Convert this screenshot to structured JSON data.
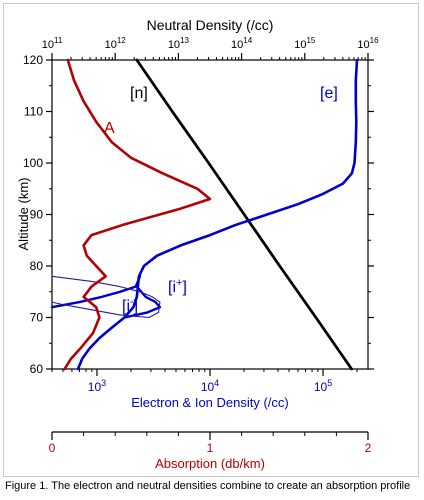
{
  "chart_data": {
    "type": "line",
    "title": "",
    "top_axis": {
      "label": "Neutral Density (/cc)",
      "scale": "log",
      "range": [
        100000000000.0,
        1e+16
      ],
      "ticks": [
        {
          "value": 100000000000.0,
          "label": "10",
          "exp": "11"
        },
        {
          "value": 1000000000000.0,
          "label": "10",
          "exp": "12"
        },
        {
          "value": 10000000000000.0,
          "label": "10",
          "exp": "13"
        },
        {
          "value": 100000000000000.0,
          "label": "10",
          "exp": "14"
        },
        {
          "value": 1000000000000000.0,
          "label": "10",
          "exp": "15"
        },
        {
          "value": 1e+16,
          "label": "10",
          "exp": "16"
        }
      ]
    },
    "bottom_axis": {
      "label": "Electron & Ion Density (/cc)",
      "scale": "log",
      "range": [
        400,
        250000
      ],
      "ticks": [
        {
          "value": 1000,
          "label": "10",
          "exp": "3"
        },
        {
          "value": 10000,
          "label": "10",
          "exp": "4"
        },
        {
          "value": 100000,
          "label": "10",
          "exp": "5"
        }
      ]
    },
    "y_axis": {
      "label": "Altitude (km)",
      "range": [
        60,
        120
      ],
      "ticks": [
        60,
        70,
        80,
        90,
        100,
        110,
        120
      ]
    },
    "absorption_axis": {
      "label": "Absorption (db/km)",
      "range": [
        0,
        2
      ],
      "ticks": [
        0,
        1,
        2
      ]
    },
    "series": [
      {
        "name": "[n]",
        "axis": "top",
        "color": "#000000",
        "points": [
          [
            2200000000000.0,
            120
          ],
          [
            8000000000000.0,
            110
          ],
          [
            30000000000000.0,
            100
          ],
          [
            110000000000000.0,
            90
          ],
          [
            400000000000000.0,
            80
          ],
          [
            1500000000000000.0,
            70
          ],
          [
            5500000000000000.0,
            60
          ]
        ]
      },
      {
        "name": "[e]",
        "axis": "bottom",
        "color": "#0000cc",
        "points": [
          [
            680,
            60
          ],
          [
            740,
            62
          ],
          [
            860,
            64
          ],
          [
            1050,
            66
          ],
          [
            1350,
            68
          ],
          [
            1750,
            70
          ],
          [
            2100,
            72
          ],
          [
            2250,
            74
          ],
          [
            2300,
            76
          ],
          [
            2350,
            78
          ],
          [
            2600,
            80
          ],
          [
            3400,
            82
          ],
          [
            5500,
            84
          ],
          [
            10000,
            86
          ],
          [
            17000,
            88
          ],
          [
            32000,
            90
          ],
          [
            60000,
            92
          ],
          [
            100000,
            94
          ],
          [
            150000,
            96
          ],
          [
            180000,
            98
          ],
          [
            190000,
            100
          ],
          [
            195000,
            104
          ],
          [
            197000,
            108
          ],
          [
            195000,
            112
          ],
          [
            195000,
            116
          ],
          [
            200000,
            120
          ]
        ]
      },
      {
        "name": "[i+]",
        "axis": "bottom",
        "color": "#0000cc",
        "points": [
          [
            400,
            72
          ],
          [
            700,
            73
          ],
          [
            1100,
            74
          ],
          [
            1600,
            75
          ],
          [
            2200,
            76
          ],
          [
            2300,
            77
          ],
          [
            2400,
            78
          ]
        ]
      },
      {
        "name": "[i+] (lower)",
        "axis": "bottom",
        "color": "#0000cc",
        "points": [
          [
            1750,
            70
          ],
          [
            2800,
            71
          ],
          [
            3600,
            72
          ],
          [
            3300,
            73
          ],
          [
            2700,
            74
          ],
          [
            2250,
            76
          ]
        ]
      },
      {
        "name": "[i-]",
        "axis": "bottom",
        "color": "#2020a0",
        "points": [
          [
            400,
            78
          ],
          [
            900,
            77
          ],
          [
            1600,
            76
          ],
          [
            2400,
            75
          ],
          [
            3100,
            74
          ],
          [
            3600,
            73
          ],
          [
            3500,
            71
          ],
          [
            2900,
            70
          ],
          [
            1600,
            70.5
          ],
          [
            900,
            71.5
          ],
          [
            500,
            72.5
          ],
          [
            400,
            73
          ]
        ]
      },
      {
        "name": "A",
        "axis": "absorption",
        "color": "#b40000",
        "points": [
          [
            0.08,
            60
          ],
          [
            0.12,
            62
          ],
          [
            0.18,
            64
          ],
          [
            0.26,
            67
          ],
          [
            0.3,
            70
          ],
          [
            0.28,
            72
          ],
          [
            0.2,
            74
          ],
          [
            0.25,
            76
          ],
          [
            0.34,
            78
          ],
          [
            0.28,
            80
          ],
          [
            0.22,
            82
          ],
          [
            0.2,
            84
          ],
          [
            0.25,
            86
          ],
          [
            0.45,
            88
          ],
          [
            0.8,
            91
          ],
          [
            1.0,
            93
          ],
          [
            0.92,
            95
          ],
          [
            0.7,
            98
          ],
          [
            0.5,
            101
          ],
          [
            0.38,
            104
          ],
          [
            0.28,
            108
          ],
          [
            0.2,
            112
          ],
          [
            0.14,
            116
          ],
          [
            0.1,
            120
          ]
        ]
      }
    ],
    "annotations": [
      {
        "text": "[n]",
        "color": "#000000"
      },
      {
        "text": "[e]",
        "color": "#0000cc"
      },
      {
        "text": "A",
        "color": "#b40000"
      },
      {
        "text": "[i",
        "sup": "+",
        "close": "]",
        "color": "#0000cc"
      },
      {
        "text": "[i",
        "sup": "-",
        "close": "]",
        "color": "#0000cc"
      }
    ]
  },
  "caption": "Figure 1. The electron and neutral densities combine to create an absorption profile"
}
